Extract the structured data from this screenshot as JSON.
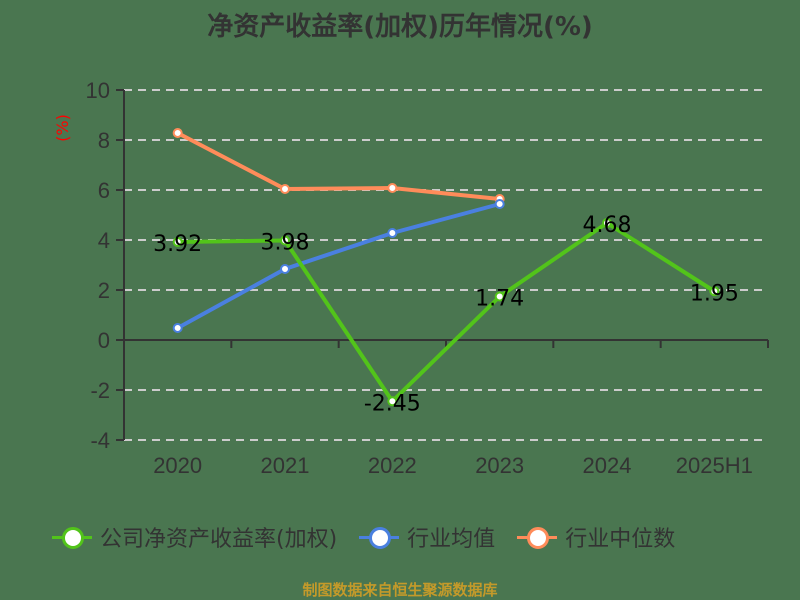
{
  "title": "净资产收益率(加权)历年情况(%)",
  "source": "制图数据来自恒生聚源数据库",
  "colors": {
    "background": "#4a7650",
    "company": "#52c41a",
    "industry_avg": "#4a80e0",
    "industry_median": "#ff8c5a",
    "grid": "#cccccc",
    "axis": "#333333",
    "unit_label": "#ff0000"
  },
  "chart_data": {
    "type": "line",
    "title": "净资产收益率(加权)历年情况(%)",
    "xlabel": "",
    "ylabel": "(%)",
    "ylim": [
      -4,
      10
    ],
    "yticks": [
      10,
      8,
      6,
      4,
      2,
      0,
      -2,
      -4
    ],
    "categories": [
      "2020",
      "2021",
      "2022",
      "2023",
      "2024",
      "2025H1"
    ],
    "grid": true,
    "legend_position": "bottom",
    "series": [
      {
        "name": "公司净资产收益率(加权)",
        "color": "#52c41a",
        "values": [
          3.92,
          3.98,
          -2.45,
          1.74,
          4.68,
          1.95
        ],
        "labels": [
          "3.92",
          "3.98",
          "-2.45",
          "1.74",
          "4.68",
          "1.95"
        ]
      },
      {
        "name": "行业均值",
        "color": "#4a80e0",
        "values": [
          0.48,
          2.84,
          4.28,
          5.44,
          null,
          null
        ]
      },
      {
        "name": "行业中位数",
        "color": "#ff8c5a",
        "values": [
          8.28,
          6.04,
          6.08,
          5.64,
          null,
          null
        ]
      }
    ]
  },
  "legend": [
    {
      "label": "公司净资产收益率(加权)",
      "color": "#52c41a"
    },
    {
      "label": "行业均值",
      "color": "#4a80e0"
    },
    {
      "label": "行业中位数",
      "color": "#ff8c5a"
    }
  ]
}
